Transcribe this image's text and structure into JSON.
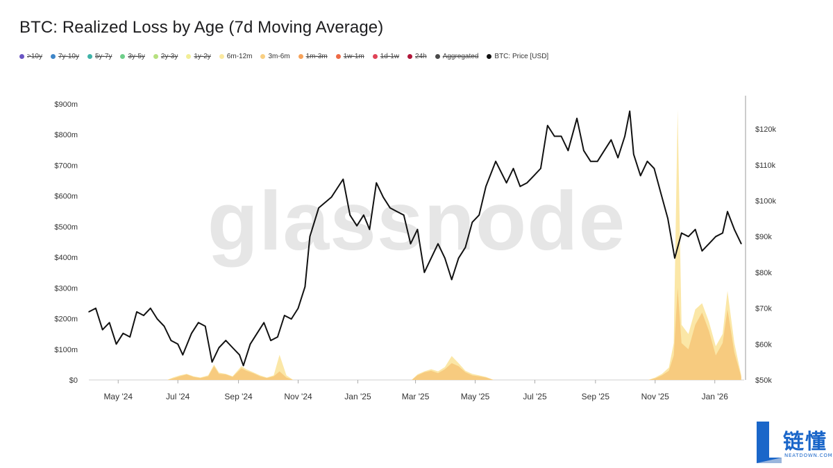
{
  "title": "BTC: Realized Loss by Age (7d Moving Average)",
  "legend": [
    {
      "label": ">10y",
      "color": "#6a55c4",
      "active": false
    },
    {
      "label": "7y-10y",
      "color": "#3f86c9",
      "active": false
    },
    {
      "label": "5y-7y",
      "color": "#3fb3a8",
      "active": false
    },
    {
      "label": "3y-5y",
      "color": "#6fcf8a",
      "active": false
    },
    {
      "label": "2y-3y",
      "color": "#b6e07f",
      "active": false
    },
    {
      "label": "1y-2y",
      "color": "#f2ee96",
      "active": false
    },
    {
      "label": "6m-12m",
      "color": "#fbe9a0",
      "active": true
    },
    {
      "label": "3m-6m",
      "color": "#f9cf82",
      "active": true
    },
    {
      "label": "1m-3m",
      "color": "#f7a35a",
      "active": false
    },
    {
      "label": "1w-1m",
      "color": "#ee6a45",
      "active": false
    },
    {
      "label": "1d-1w",
      "color": "#e04357",
      "active": false
    },
    {
      "label": "24h",
      "color": "#b0173a",
      "active": false
    },
    {
      "label": "Aggregated",
      "color": "#4a4a4a",
      "active": false
    },
    {
      "label": "BTC: Price [USD]",
      "color": "#111111",
      "active": true
    }
  ],
  "watermark": "glassnode",
  "logo": {
    "cn": "链懂",
    "en": "NEATDOWN.COM"
  },
  "chart_data": {
    "type": "area",
    "x_ticks": [
      "May '24",
      "Jul '24",
      "Sep '24",
      "Nov '24",
      "Jan '25",
      "Mar '25",
      "May '25",
      "Jul '25",
      "Sep '25",
      "Nov '25",
      "Jan '26"
    ],
    "y_left": {
      "ticks": [
        "$0",
        "$100m",
        "$200m",
        "$300m",
        "$400m",
        "$500m",
        "$600m",
        "$700m",
        "$800m",
        "$900m"
      ],
      "range": [
        0,
        900
      ],
      "unit": "USD millions"
    },
    "y_right": {
      "ticks": [
        "$50k",
        "$60k",
        "$70k",
        "$80k",
        "$90k",
        "$100k",
        "$110k",
        "$120k"
      ],
      "range": [
        50,
        127
      ],
      "unit": "USD thousands"
    },
    "x_domain": [
      "2024-04-01",
      "2026-01-31"
    ],
    "series": [
      {
        "name": "BTC: Price [USD]",
        "color": "#111111",
        "kind": "line",
        "axis": "right",
        "points": [
          [
            "2024-04-01",
            69
          ],
          [
            "2024-04-08",
            70
          ],
          [
            "2024-04-15",
            64
          ],
          [
            "2024-04-22",
            66
          ],
          [
            "2024-04-29",
            60
          ],
          [
            "2024-05-06",
            63
          ],
          [
            "2024-05-13",
            62
          ],
          [
            "2024-05-20",
            69
          ],
          [
            "2024-05-27",
            68
          ],
          [
            "2024-06-03",
            70
          ],
          [
            "2024-06-10",
            67
          ],
          [
            "2024-06-17",
            65
          ],
          [
            "2024-06-24",
            61
          ],
          [
            "2024-07-01",
            60
          ],
          [
            "2024-07-06",
            57
          ],
          [
            "2024-07-15",
            63
          ],
          [
            "2024-07-22",
            66
          ],
          [
            "2024-07-29",
            65
          ],
          [
            "2024-08-05",
            55
          ],
          [
            "2024-08-12",
            59
          ],
          [
            "2024-08-19",
            61
          ],
          [
            "2024-08-26",
            59
          ],
          [
            "2024-09-02",
            57
          ],
          [
            "2024-09-06",
            54
          ],
          [
            "2024-09-13",
            60
          ],
          [
            "2024-09-20",
            63
          ],
          [
            "2024-09-27",
            66
          ],
          [
            "2024-10-04",
            61
          ],
          [
            "2024-10-11",
            62
          ],
          [
            "2024-10-18",
            68
          ],
          [
            "2024-10-25",
            67
          ],
          [
            "2024-11-01",
            70
          ],
          [
            "2024-11-08",
            76
          ],
          [
            "2024-11-13",
            90
          ],
          [
            "2024-11-22",
            98
          ],
          [
            "2024-12-05",
            101
          ],
          [
            "2024-12-17",
            106
          ],
          [
            "2024-12-24",
            96
          ],
          [
            "2024-12-31",
            93
          ],
          [
            "2025-01-07",
            96
          ],
          [
            "2025-01-13",
            92
          ],
          [
            "2025-01-20",
            105
          ],
          [
            "2025-01-27",
            101
          ],
          [
            "2025-02-03",
            98
          ],
          [
            "2025-02-10",
            97
          ],
          [
            "2025-02-17",
            96
          ],
          [
            "2025-02-24",
            88
          ],
          [
            "2025-03-03",
            92
          ],
          [
            "2025-03-10",
            80
          ],
          [
            "2025-03-17",
            84
          ],
          [
            "2025-03-24",
            88
          ],
          [
            "2025-03-31",
            84
          ],
          [
            "2025-04-07",
            78
          ],
          [
            "2025-04-14",
            84
          ],
          [
            "2025-04-21",
            87
          ],
          [
            "2025-04-28",
            94
          ],
          [
            "2025-05-05",
            96
          ],
          [
            "2025-05-12",
            104
          ],
          [
            "2025-05-22",
            111
          ],
          [
            "2025-06-02",
            105
          ],
          [
            "2025-06-09",
            109
          ],
          [
            "2025-06-16",
            104
          ],
          [
            "2025-06-23",
            105
          ],
          [
            "2025-06-30",
            107
          ],
          [
            "2025-07-07",
            109
          ],
          [
            "2025-07-14",
            121
          ],
          [
            "2025-07-21",
            118
          ],
          [
            "2025-07-28",
            118
          ],
          [
            "2025-08-04",
            114
          ],
          [
            "2025-08-13",
            123
          ],
          [
            "2025-08-20",
            114
          ],
          [
            "2025-08-27",
            111
          ],
          [
            "2025-09-03",
            111
          ],
          [
            "2025-09-10",
            114
          ],
          [
            "2025-09-17",
            117
          ],
          [
            "2025-09-24",
            112
          ],
          [
            "2025-10-01",
            118
          ],
          [
            "2025-10-06",
            125
          ],
          [
            "2025-10-10",
            113
          ],
          [
            "2025-10-17",
            107
          ],
          [
            "2025-10-24",
            111
          ],
          [
            "2025-10-31",
            109
          ],
          [
            "2025-11-07",
            102
          ],
          [
            "2025-11-14",
            95
          ],
          [
            "2025-11-21",
            84
          ],
          [
            "2025-11-28",
            91
          ],
          [
            "2025-12-05",
            90
          ],
          [
            "2025-12-12",
            92
          ],
          [
            "2025-12-19",
            86
          ],
          [
            "2025-12-26",
            88
          ],
          [
            "2026-01-02",
            90
          ],
          [
            "2026-01-09",
            91
          ],
          [
            "2026-01-14",
            97
          ],
          [
            "2026-01-21",
            92
          ],
          [
            "2026-01-28",
            88
          ]
        ]
      },
      {
        "name": "3m-6m",
        "color": "#f7c97c",
        "kind": "area",
        "axis": "left",
        "points": [
          [
            "2024-04-01",
            0
          ],
          [
            "2024-06-20",
            0
          ],
          [
            "2024-06-26",
            5
          ],
          [
            "2024-07-03",
            12
          ],
          [
            "2024-07-10",
            18
          ],
          [
            "2024-07-17",
            10
          ],
          [
            "2024-07-24",
            6
          ],
          [
            "2024-08-01",
            12
          ],
          [
            "2024-08-07",
            45
          ],
          [
            "2024-08-12",
            20
          ],
          [
            "2024-08-19",
            18
          ],
          [
            "2024-08-26",
            10
          ],
          [
            "2024-09-04",
            38
          ],
          [
            "2024-09-09",
            30
          ],
          [
            "2024-09-16",
            22
          ],
          [
            "2024-09-23",
            12
          ],
          [
            "2024-09-30",
            6
          ],
          [
            "2024-10-07",
            12
          ],
          [
            "2024-10-13",
            28
          ],
          [
            "2024-10-20",
            8
          ],
          [
            "2024-10-27",
            0
          ],
          [
            "2025-02-25",
            0
          ],
          [
            "2025-03-03",
            15
          ],
          [
            "2025-03-10",
            25
          ],
          [
            "2025-03-17",
            30
          ],
          [
            "2025-03-24",
            22
          ],
          [
            "2025-03-31",
            35
          ],
          [
            "2025-04-07",
            55
          ],
          [
            "2025-04-14",
            45
          ],
          [
            "2025-04-21",
            25
          ],
          [
            "2025-04-28",
            15
          ],
          [
            "2025-05-05",
            12
          ],
          [
            "2025-05-12",
            8
          ],
          [
            "2025-05-20",
            0
          ],
          [
            "2025-10-25",
            0
          ],
          [
            "2025-11-01",
            5
          ],
          [
            "2025-11-08",
            15
          ],
          [
            "2025-11-15",
            30
          ],
          [
            "2025-11-20",
            80
          ],
          [
            "2025-11-24",
            300
          ],
          [
            "2025-11-28",
            120
          ],
          [
            "2025-12-05",
            100
          ],
          [
            "2025-12-12",
            180
          ],
          [
            "2025-12-19",
            220
          ],
          [
            "2025-12-26",
            160
          ],
          [
            "2026-01-02",
            80
          ],
          [
            "2026-01-09",
            120
          ],
          [
            "2026-01-14",
            230
          ],
          [
            "2026-01-21",
            90
          ],
          [
            "2026-01-28",
            10
          ]
        ]
      },
      {
        "name": "6m-12m",
        "color": "#fbe6a2",
        "kind": "area",
        "axis": "left",
        "points": [
          [
            "2024-04-01",
            0
          ],
          [
            "2024-06-20",
            0
          ],
          [
            "2024-06-26",
            8
          ],
          [
            "2024-07-03",
            15
          ],
          [
            "2024-07-10",
            20
          ],
          [
            "2024-07-17",
            12
          ],
          [
            "2024-07-24",
            8
          ],
          [
            "2024-08-01",
            15
          ],
          [
            "2024-08-07",
            50
          ],
          [
            "2024-08-12",
            24
          ],
          [
            "2024-08-19",
            20
          ],
          [
            "2024-08-26",
            12
          ],
          [
            "2024-09-04",
            45
          ],
          [
            "2024-09-09",
            35
          ],
          [
            "2024-09-16",
            25
          ],
          [
            "2024-09-23",
            15
          ],
          [
            "2024-09-30",
            8
          ],
          [
            "2024-10-07",
            15
          ],
          [
            "2024-10-13",
            82
          ],
          [
            "2024-10-20",
            15
          ],
          [
            "2024-10-27",
            0
          ],
          [
            "2025-02-25",
            0
          ],
          [
            "2025-03-03",
            18
          ],
          [
            "2025-03-10",
            28
          ],
          [
            "2025-03-17",
            35
          ],
          [
            "2025-03-24",
            28
          ],
          [
            "2025-03-31",
            42
          ],
          [
            "2025-04-07",
            78
          ],
          [
            "2025-04-14",
            55
          ],
          [
            "2025-04-21",
            30
          ],
          [
            "2025-04-28",
            20
          ],
          [
            "2025-05-05",
            15
          ],
          [
            "2025-05-12",
            10
          ],
          [
            "2025-05-20",
            0
          ],
          [
            "2025-10-25",
            0
          ],
          [
            "2025-11-01",
            8
          ],
          [
            "2025-11-08",
            20
          ],
          [
            "2025-11-15",
            40
          ],
          [
            "2025-11-20",
            120
          ],
          [
            "2025-11-24",
            880
          ],
          [
            "2025-11-28",
            180
          ],
          [
            "2025-12-05",
            150
          ],
          [
            "2025-12-12",
            230
          ],
          [
            "2025-12-19",
            250
          ],
          [
            "2025-12-26",
            190
          ],
          [
            "2026-01-02",
            110
          ],
          [
            "2026-01-09",
            150
          ],
          [
            "2026-01-14",
            290
          ],
          [
            "2026-01-21",
            120
          ],
          [
            "2026-01-28",
            15
          ]
        ]
      }
    ]
  }
}
